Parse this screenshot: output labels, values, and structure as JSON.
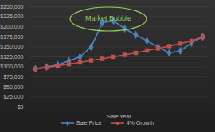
{
  "chart_data": {
    "type": "line",
    "x_label": "Sale Year",
    "categories": [
      null,
      null,
      null,
      null,
      null,
      null,
      null,
      null,
      null,
      null,
      null,
      null,
      null,
      null,
      null,
      null
    ],
    "series": [
      {
        "name": "Sale Price",
        "color": "#4f81bd",
        "marker": "diamond",
        "values": [
          95000,
          100000,
          105000,
          115000,
          125000,
          150000,
          210000,
          215000,
          195000,
          180000,
          165000,
          150000,
          135000,
          140000,
          160000,
          175000
        ]
      },
      {
        "name": "4% Growth",
        "color": "#c0504d",
        "marker": "square",
        "values": [
          95000,
          99000,
          103000,
          107000,
          111000,
          116000,
          120000,
          125000,
          130000,
          135000,
          141000,
          146000,
          152000,
          158000,
          165000,
          175000
        ]
      }
    ],
    "ylim": [
      0,
      250000
    ],
    "yticks": [
      {
        "value": 0,
        "label": "$0"
      },
      {
        "value": 25000,
        "label": "$25,000"
      },
      {
        "value": 50000,
        "label": "$50,000"
      },
      {
        "value": 75000,
        "label": "$75,000"
      },
      {
        "value": 100000,
        "label": "$100,000"
      },
      {
        "value": 125000,
        "label": "$125,000"
      },
      {
        "value": 150000,
        "label": "$150,000"
      },
      {
        "value": 175000,
        "label": "$175,000"
      },
      {
        "value": 200000,
        "label": "$200,000"
      },
      {
        "value": 225000,
        "label": "$225,000"
      },
      {
        "value": 250000,
        "label": "$250,000"
      }
    ],
    "grid": true,
    "tick_labels": "y",
    "legend": "bottom",
    "annotations": [
      {
        "text": "Market Bubble",
        "color": "#92d050"
      }
    ]
  }
}
